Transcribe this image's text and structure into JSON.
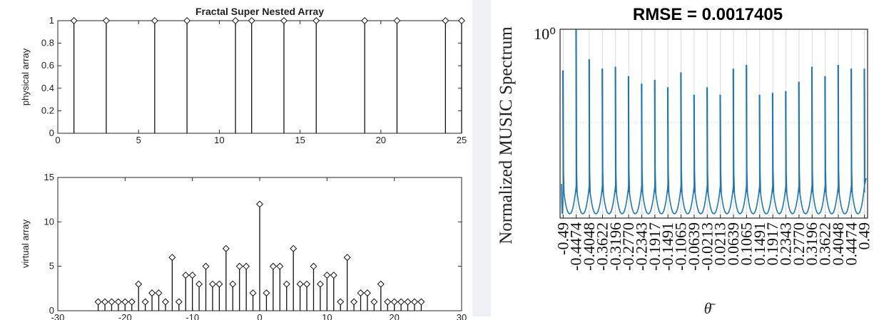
{
  "chart_data": [
    {
      "type": "stem",
      "title": "Fractal Super Nested Array",
      "xlabel": "",
      "ylabel": "physical array",
      "xlim": [
        0,
        25
      ],
      "ylim": [
        0,
        1
      ],
      "xticks": [
        0,
        5,
        10,
        15,
        20,
        25
      ],
      "yticks": [
        0,
        0.2,
        0.4,
        0.6,
        0.8,
        1
      ],
      "x": [
        1,
        3,
        6,
        8,
        11,
        12,
        14,
        16,
        19,
        21,
        24,
        25
      ],
      "y": [
        1,
        1,
        1,
        1,
        1,
        1,
        1,
        1,
        1,
        1,
        1,
        1
      ],
      "marker": "diamond",
      "grid": false
    },
    {
      "type": "stem",
      "title": "",
      "xlabel": "",
      "ylabel": "virtual array",
      "xlim": [
        -30,
        30
      ],
      "ylim": [
        0,
        15
      ],
      "xticks": [
        -30,
        -20,
        -10,
        0,
        10,
        20,
        30
      ],
      "yticks": [
        0,
        5,
        10,
        15
      ],
      "x": [
        -24,
        -23,
        -22,
        -21,
        -20,
        -19,
        -18,
        -17,
        -16,
        -15,
        -14,
        -13,
        -12,
        -11,
        -10,
        -9,
        -8,
        -7,
        -6,
        -5,
        -4,
        -3,
        -2,
        -1,
        0,
        1,
        2,
        3,
        4,
        5,
        6,
        7,
        8,
        9,
        10,
        11,
        12,
        13,
        14,
        15,
        16,
        17,
        18,
        19,
        20,
        21,
        22,
        23,
        24
      ],
      "y": [
        1,
        1,
        1,
        1,
        1,
        1,
        3,
        1,
        2,
        2,
        1,
        6,
        1,
        4,
        4,
        3,
        5,
        3,
        3,
        7,
        3,
        5,
        5,
        2,
        12,
        2,
        5,
        5,
        3,
        7,
        3,
        3,
        5,
        3,
        4,
        4,
        1,
        6,
        1,
        2,
        2,
        1,
        3,
        1,
        1,
        1,
        1,
        1,
        1
      ],
      "marker": "diamond",
      "grid": false
    },
    {
      "type": "line",
      "title": "RMSE = 0.0017405",
      "xlabel": "θ̄",
      "ylabel": "Normalized MUSIC Spectrum",
      "yscale": "log",
      "ytick_labels": [
        "10⁰"
      ],
      "xlim": [
        -0.5,
        0.5
      ],
      "xticks": [
        -0.49,
        -0.4474,
        -0.4048,
        -0.3622,
        -0.3196,
        -0.277,
        -0.2343,
        -0.1917,
        -0.1491,
        -0.1065,
        -0.0639,
        -0.0213,
        0.0213,
        0.0639,
        0.1065,
        0.1491,
        0.1917,
        0.2343,
        0.277,
        0.3196,
        0.3622,
        0.4048,
        0.4474,
        0.49
      ],
      "xtick_labels": [
        "-0.49",
        "-0.4474",
        "-0.4048",
        "-0.3622",
        "-0.3196",
        "-0.2770",
        "-0.2343",
        "-0.1917",
        "-0.1491",
        "-0.1065",
        "-0.0639",
        "-0.0213",
        "0.0213",
        "0.0639",
        "0.1065",
        "0.1491",
        "0.1917",
        "0.2343",
        "0.2770",
        "0.3196",
        "0.3622",
        "0.4048",
        "0.4474",
        "0.49"
      ],
      "peak_heights_normalized": [
        0.78,
        1.0,
        0.84,
        0.79,
        0.8,
        0.75,
        0.71,
        0.73,
        0.69,
        0.77,
        0.65,
        0.69,
        0.65,
        0.79,
        0.81,
        0.65,
        0.66,
        0.67,
        0.72,
        0.8,
        0.75,
        0.81,
        0.79,
        0.79
      ],
      "grid": true
    }
  ]
}
